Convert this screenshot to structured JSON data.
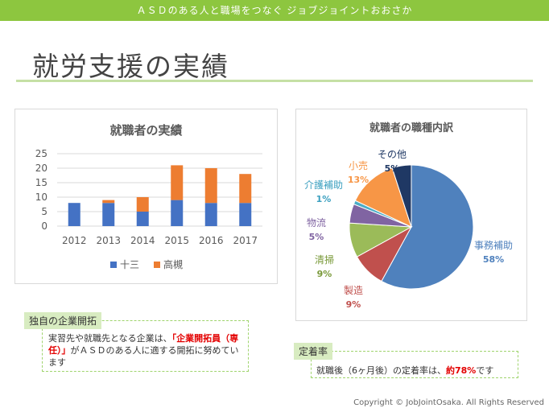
{
  "header": {
    "banner": "ＡＳＤのある人と職場をつなぐ ジョブジョイントおおさか"
  },
  "page": {
    "title": "就労支援の実績"
  },
  "bar_legend": {
    "series1": "十三",
    "series2": "高槻"
  },
  "pie_labels": {
    "s1": {
      "name": "事務補助",
      "pct": "58%"
    },
    "s2": {
      "name": "製造",
      "pct": "9%"
    },
    "s3": {
      "name": "清掃",
      "pct": "9%"
    },
    "s4": {
      "name": "物流",
      "pct": "5%"
    },
    "s5": {
      "name": "介護補助",
      "pct": "1%"
    },
    "s6": {
      "name": "小売",
      "pct": "13%"
    },
    "s7": {
      "name": "その他",
      "pct": "5%"
    }
  },
  "chart_data": [
    {
      "type": "bar",
      "stacked": true,
      "title": "就職者の実績",
      "categories": [
        "2012",
        "2013",
        "2014",
        "2015",
        "2016",
        "2017"
      ],
      "series": [
        {
          "name": "十三",
          "color": "#4472c4",
          "values": [
            8,
            8,
            5,
            9,
            8,
            8
          ]
        },
        {
          "name": "高槻",
          "color": "#ed7d31",
          "values": [
            0,
            1,
            5,
            12,
            12,
            10
          ]
        }
      ],
      "ylim": [
        0,
        25
      ],
      "yticks": [
        "0",
        "5",
        "10",
        "15",
        "20",
        "25"
      ],
      "legend": "bottom"
    },
    {
      "type": "pie",
      "title": "就職者の職種内訳",
      "slices": [
        {
          "name": "事務補助",
          "value": 58,
          "color": "#4f81bd",
          "label_color": "#4f81bd"
        },
        {
          "name": "製造",
          "value": 9,
          "color": "#c0504d",
          "label_color": "#c0504d"
        },
        {
          "name": "清掃",
          "value": 9,
          "color": "#9bbb59",
          "label_color": "#7a9a3a"
        },
        {
          "name": "物流",
          "value": 5,
          "color": "#8064a2",
          "label_color": "#8064a2"
        },
        {
          "name": "介護補助",
          "value": 1,
          "color": "#4bacc6",
          "label_color": "#3a9fbf"
        },
        {
          "name": "小売",
          "value": 13,
          "color": "#f79646",
          "label_color": "#f79646"
        },
        {
          "name": "その他",
          "value": 5,
          "color": "#1f3864",
          "label_color": "#1f3864"
        }
      ]
    }
  ],
  "feature": {
    "tag": "独自の企業開拓",
    "text_before": "実習先や就職先となる企業は、",
    "highlight": "「企業開拓員（専任）」",
    "text_after": "がＡＳＤのある人に適する開拓に努めています"
  },
  "retention": {
    "tag": "定着率",
    "text_before": "就職後（6ヶ月後）の定着率は、",
    "highlight": "約78%",
    "text_after": "です"
  },
  "footer": {
    "copyright": "Copyright © JobJointOsaka. All Rights Reserved"
  }
}
